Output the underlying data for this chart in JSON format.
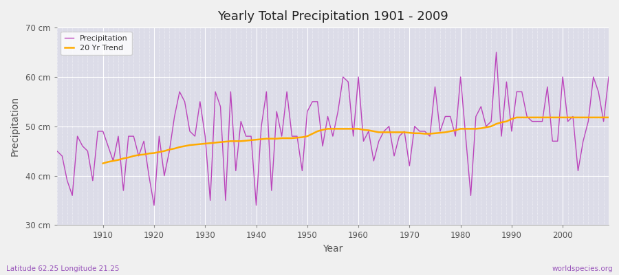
{
  "title": "Yearly Total Precipitation 1901 - 2009",
  "xlabel": "Year",
  "ylabel": "Precipitation",
  "subtitle_left": "Latitude 62.25 Longitude 21.25",
  "subtitle_right": "worldspecies.org",
  "fig_bg_color": "#f0f0f0",
  "plot_bg_color": "#dcdce8",
  "line_color": "#bb44bb",
  "trend_color": "#ffaa00",
  "grid_color": "#ffffff",
  "ylim": [
    30,
    70
  ],
  "yticks": [
    30,
    40,
    50,
    60,
    70
  ],
  "ytick_labels": [
    "30 cm",
    "40 cm",
    "50 cm",
    "60 cm",
    "70 cm"
  ],
  "xticks": [
    1910,
    1920,
    1930,
    1940,
    1950,
    1960,
    1970,
    1980,
    1990,
    2000
  ],
  "years": [
    1901,
    1902,
    1903,
    1904,
    1905,
    1906,
    1907,
    1908,
    1909,
    1910,
    1911,
    1912,
    1913,
    1914,
    1915,
    1916,
    1917,
    1918,
    1919,
    1920,
    1921,
    1922,
    1923,
    1924,
    1925,
    1926,
    1927,
    1928,
    1929,
    1930,
    1931,
    1932,
    1933,
    1934,
    1935,
    1936,
    1937,
    1938,
    1939,
    1940,
    1941,
    1942,
    1943,
    1944,
    1945,
    1946,
    1947,
    1948,
    1949,
    1950,
    1951,
    1952,
    1953,
    1954,
    1955,
    1956,
    1957,
    1958,
    1959,
    1960,
    1961,
    1962,
    1963,
    1964,
    1965,
    1966,
    1967,
    1968,
    1969,
    1970,
    1971,
    1972,
    1973,
    1974,
    1975,
    1976,
    1977,
    1978,
    1979,
    1980,
    1981,
    1982,
    1983,
    1984,
    1985,
    1986,
    1987,
    1988,
    1989,
    1990,
    1991,
    1992,
    1993,
    1994,
    1995,
    1996,
    1997,
    1998,
    1999,
    2000,
    2001,
    2002,
    2003,
    2004,
    2005,
    2006,
    2007,
    2008,
    2009
  ],
  "precip": [
    45,
    44,
    39,
    36,
    48,
    46,
    45,
    39,
    49,
    49,
    46,
    43,
    48,
    37,
    48,
    48,
    44,
    47,
    40,
    34,
    48,
    40,
    45,
    52,
    57,
    55,
    49,
    48,
    55,
    48,
    35,
    57,
    54,
    35,
    57,
    41,
    51,
    48,
    48,
    34,
    50,
    57,
    37,
    53,
    48,
    57,
    48,
    48,
    41,
    53,
    55,
    55,
    46,
    52,
    48,
    53,
    60,
    59,
    48,
    60,
    47,
    49,
    43,
    47,
    49,
    50,
    44,
    48,
    49,
    42,
    50,
    49,
    49,
    48,
    58,
    49,
    52,
    52,
    48,
    60,
    48,
    36,
    52,
    54,
    50,
    51,
    65,
    48,
    59,
    49,
    57,
    57,
    52,
    51,
    51,
    51,
    58,
    47,
    47,
    60,
    51,
    52,
    41,
    47,
    51,
    60,
    57,
    51,
    60
  ],
  "trend": [
    null,
    null,
    null,
    null,
    null,
    null,
    null,
    null,
    null,
    42.5,
    42.8,
    43.0,
    43.2,
    43.5,
    43.7,
    44.0,
    44.2,
    44.3,
    44.5,
    44.6,
    44.8,
    45.0,
    45.3,
    45.5,
    45.8,
    46.0,
    46.2,
    46.3,
    46.4,
    46.5,
    46.6,
    46.7,
    46.8,
    46.9,
    47.0,
    47.0,
    47.0,
    47.1,
    47.2,
    47.3,
    47.4,
    47.5,
    47.5,
    47.5,
    47.6,
    47.6,
    47.6,
    47.7,
    47.8,
    48.0,
    48.5,
    49.0,
    49.3,
    49.5,
    49.5,
    49.5,
    49.5,
    49.5,
    49.5,
    49.5,
    49.3,
    49.2,
    49.0,
    48.8,
    48.8,
    48.8,
    48.8,
    48.8,
    48.8,
    48.7,
    48.6,
    48.6,
    48.5,
    48.5,
    48.6,
    48.7,
    48.8,
    49.0,
    49.2,
    49.5,
    49.5,
    49.5,
    49.5,
    49.6,
    49.8,
    50.0,
    50.5,
    50.8,
    51.0,
    51.5,
    51.8,
    51.8,
    51.8,
    51.8,
    51.8,
    51.8,
    51.8,
    51.8,
    51.8,
    51.8,
    51.8,
    51.8,
    51.8,
    51.8,
    51.8,
    51.8,
    51.8,
    51.8,
    51.8
  ]
}
